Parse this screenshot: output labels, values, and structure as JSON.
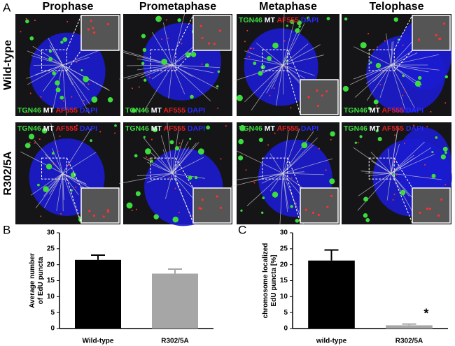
{
  "figure": {
    "panel_labels": [
      "A",
      "B",
      "C"
    ],
    "microscopy": {
      "columns": [
        "Prophase",
        "Prometaphase",
        "Metaphase",
        "Telophase"
      ],
      "rows": [
        "Wild-type",
        "R302/5A"
      ],
      "channels": [
        "TGN46",
        "MT",
        "AF555",
        "DAPI"
      ],
      "channel_colors": [
        "#3ddc3d",
        "#ffffff",
        "#e02020",
        "#2a2aff"
      ]
    }
  },
  "chart_data": [
    {
      "type": "bar",
      "ylabel": "Average number of EdU puncta",
      "categories": [
        "Wild-type",
        "R302/5A"
      ],
      "values": [
        21.5,
        17.2
      ],
      "errors": [
        1.5,
        1.4
      ],
      "colors": [
        "#000000",
        "#a6a6a6"
      ],
      "ylim": [
        0,
        30
      ],
      "yticks": [
        0,
        5,
        10,
        15,
        20,
        25,
        30
      ]
    },
    {
      "type": "bar",
      "ylabel": "chromosome localized EdU puncta [%]",
      "categories": [
        "wild-type",
        "R302/5A"
      ],
      "values": [
        21.3,
        1.0
      ],
      "errors": [
        3.3,
        0.4
      ],
      "colors": [
        "#000000",
        "#a6a6a6"
      ],
      "ylim": [
        0,
        30
      ],
      "yticks": [
        0,
        5,
        10,
        15,
        20,
        25,
        30
      ],
      "annotations": [
        {
          "text": "*",
          "category": 1
        }
      ]
    }
  ]
}
